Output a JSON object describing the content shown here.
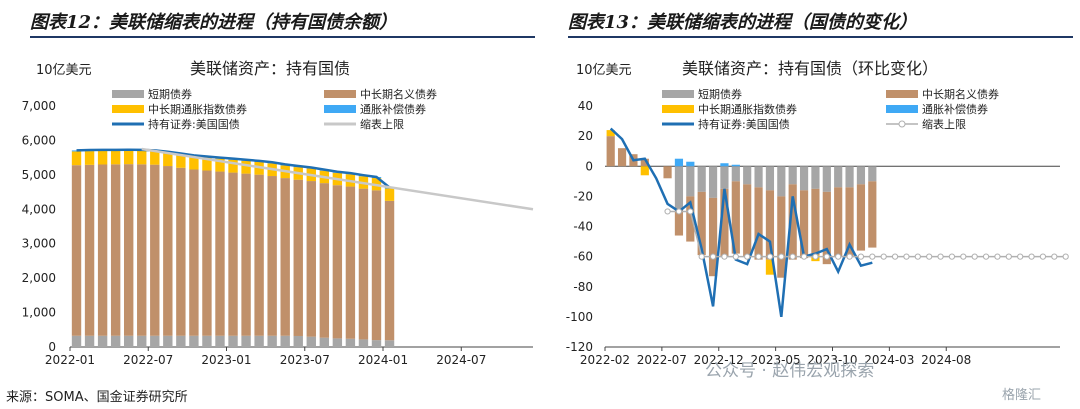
{
  "left_panel": {
    "title": "图表12：美联储缩表的进程（持有国债余额）"
  },
  "right_panel": {
    "title": "图表13：美联储缩表的进程（国债的变化）"
  },
  "source": "来源：SOMA、国金证券研究所",
  "watermark": "公众号 · 赵伟宏观探索",
  "watermark_logo": "格隆汇",
  "chart_data": [
    {
      "type": "bar",
      "stacked": true,
      "title": "美联储资产：持有国债",
      "unit": "10亿美元",
      "ylim": [
        0,
        7000
      ],
      "yticks": [
        0,
        1000,
        2000,
        3000,
        4000,
        5000,
        6000,
        7000
      ],
      "ytick_labels": [
        "0",
        "1,000",
        "2,000",
        "3,000",
        "4,000",
        "5,000",
        "6,000",
        "7,000"
      ],
      "xtick_labels": [
        "2022-01",
        "2022-07",
        "2023-01",
        "2023-07",
        "2024-01",
        "2024-07"
      ],
      "x": [
        "2022-01",
        "2022-02",
        "2022-03",
        "2022-04",
        "2022-05",
        "2022-06",
        "2022-07",
        "2022-08",
        "2022-09",
        "2022-10",
        "2022-11",
        "2022-12",
        "2023-01",
        "2023-02",
        "2023-03",
        "2023-04",
        "2023-05",
        "2023-06",
        "2023-07",
        "2023-08",
        "2023-09",
        "2023-10",
        "2023-11",
        "2023-12",
        "2024-01"
      ],
      "legend_position": "top",
      "series": [
        {
          "name": "短期债券",
          "color": "#a6a6a6",
          "values": [
            326,
            326,
            326,
            326,
            326,
            326,
            326,
            326,
            326,
            326,
            326,
            326,
            326,
            326,
            326,
            326,
            326,
            320,
            300,
            270,
            250,
            240,
            220,
            200,
            195
          ]
        },
        {
          "name": "中长期名义债券",
          "color": "#c0906a",
          "values": [
            4955,
            4965,
            4975,
            4980,
            4985,
            4980,
            4970,
            4930,
            4880,
            4830,
            4800,
            4770,
            4740,
            4710,
            4680,
            4640,
            4580,
            4540,
            4520,
            4490,
            4450,
            4420,
            4380,
            4350,
            4050
          ]
        },
        {
          "name": "中长期通胀指数债券",
          "color": "#ffc000",
          "values": [
            400,
            400,
            395,
            390,
            390,
            388,
            385,
            385,
            383,
            380,
            378,
            376,
            374,
            372,
            370,
            370,
            368,
            366,
            364,
            362,
            360,
            360,
            360,
            358,
            358
          ]
        },
        {
          "name": "通胀补偿债券",
          "color": "#3fa9f5",
          "values": [
            30,
            30,
            30,
            30,
            30,
            30,
            30,
            30,
            30,
            30,
            30,
            30,
            30,
            30,
            30,
            30,
            30,
            30,
            30,
            30,
            30,
            30,
            30,
            30,
            30
          ]
        },
        {
          "name": "持有证券:美国国债",
          "type": "line",
          "color": "#1f6fb3",
          "values": [
            5711,
            5721,
            5726,
            5726,
            5731,
            5724,
            5711,
            5671,
            5619,
            5566,
            5534,
            5502,
            5470,
            5438,
            5406,
            5366,
            5304,
            5256,
            5214,
            5152,
            5090,
            5050,
            4990,
            4938,
            4633
          ]
        },
        {
          "name": "缩表上限",
          "type": "line",
          "color": "#c8c8c8",
          "x": [
            "2022-06",
            "2024-12"
          ],
          "values": [
            5750,
            4000
          ]
        }
      ]
    },
    {
      "type": "bar",
      "stacked": true,
      "title": "美联储资产：持有国债（环比变化）",
      "unit": "10亿美元",
      "ylim": [
        -120,
        40
      ],
      "yticks": [
        -120,
        -100,
        -80,
        -60,
        -40,
        -20,
        0,
        20,
        40
      ],
      "ytick_labels": [
        "-120",
        "-100",
        "-80",
        "-60",
        "-40",
        "-20",
        "0",
        "20",
        "40"
      ],
      "xtick_labels": [
        "2022-02",
        "2022-07",
        "2022-12",
        "2023-05",
        "2023-10",
        "2024-03",
        "2024-08"
      ],
      "legend_position": "top",
      "series": [
        {
          "name": "短期债券",
          "color": "#a6a6a6",
          "values": [
            0,
            0,
            0,
            0,
            0,
            0,
            -28,
            -20,
            -17,
            -21,
            -15,
            -10,
            -12,
            -14,
            -16,
            -20,
            -12,
            -16,
            -15,
            -17,
            -14,
            -14,
            -12,
            -10
          ]
        },
        {
          "name": "中长期名义债券",
          "color": "#c0906a",
          "values": [
            20,
            12,
            8,
            5,
            0,
            -8,
            -18,
            -30,
            -42,
            -52,
            -45,
            -48,
            -48,
            -48,
            -46,
            -54,
            -50,
            -45,
            -44,
            -48,
            -46,
            -46,
            -44,
            -44
          ]
        },
        {
          "name": "中长期通胀指数债券",
          "color": "#ffc000",
          "values": [
            4,
            0,
            0,
            -6,
            0,
            0,
            0,
            0,
            0,
            0,
            0,
            0,
            0,
            0,
            -10,
            0,
            0,
            0,
            -4,
            0,
            0,
            0,
            0,
            0
          ]
        },
        {
          "name": "通胀补偿债券",
          "color": "#3fa9f5",
          "values": [
            0,
            0,
            0,
            0,
            0,
            0,
            5,
            3,
            0,
            0,
            2,
            1,
            0,
            0,
            0,
            0,
            0,
            0,
            0,
            0,
            0,
            0,
            0,
            0
          ]
        },
        {
          "name": "持有证券:美国国债",
          "type": "line",
          "color": "#1f6fb3",
          "values": [
            25,
            18,
            4,
            5,
            -8,
            -25,
            -30,
            -24,
            -55,
            -93,
            -15,
            -62,
            -65,
            -45,
            -50,
            -100,
            -20,
            -60,
            -58,
            -55,
            -70,
            -52,
            -66,
            -64
          ]
        },
        {
          "name": "缩表上限",
          "type": "line",
          "color": "#b0b0b0",
          "start_index": 5,
          "values": [
            -30,
            -30,
            -30,
            -60,
            -60,
            -60,
            -60,
            -60,
            -60,
            -60,
            -60,
            -60,
            -60,
            -60,
            -60,
            -60,
            -60,
            -60,
            -60,
            -60,
            -60,
            -60,
            -60,
            -60,
            -60,
            -60,
            -60,
            -60,
            -60,
            -60,
            -60,
            -60,
            -60,
            -60,
            -60,
            -60
          ]
        }
      ]
    }
  ]
}
